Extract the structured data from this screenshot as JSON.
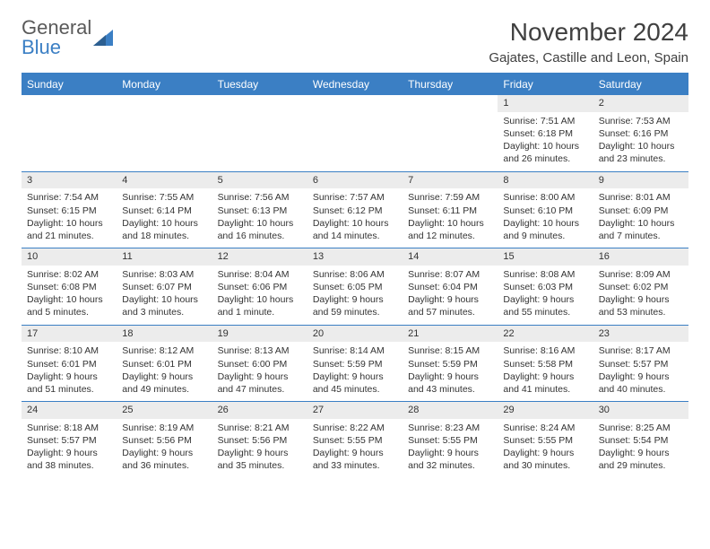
{
  "logo": {
    "top": "General",
    "bottom": "Blue"
  },
  "title": "November 2024",
  "location": "Gajates, Castille and Leon, Spain",
  "colors": {
    "accent": "#3b7fc4",
    "header_row_bg": "#ececec",
    "text": "#333333",
    "logo_gray": "#5a5a5a"
  },
  "weekdays": [
    "Sunday",
    "Monday",
    "Tuesday",
    "Wednesday",
    "Thursday",
    "Friday",
    "Saturday"
  ],
  "weeks": [
    [
      {
        "empty": true
      },
      {
        "empty": true
      },
      {
        "empty": true
      },
      {
        "empty": true
      },
      {
        "empty": true
      },
      {
        "day": "1",
        "sunrise": "Sunrise: 7:51 AM",
        "sunset": "Sunset: 6:18 PM",
        "daylight": "Daylight: 10 hours and 26 minutes."
      },
      {
        "day": "2",
        "sunrise": "Sunrise: 7:53 AM",
        "sunset": "Sunset: 6:16 PM",
        "daylight": "Daylight: 10 hours and 23 minutes."
      }
    ],
    [
      {
        "day": "3",
        "sunrise": "Sunrise: 7:54 AM",
        "sunset": "Sunset: 6:15 PM",
        "daylight": "Daylight: 10 hours and 21 minutes."
      },
      {
        "day": "4",
        "sunrise": "Sunrise: 7:55 AM",
        "sunset": "Sunset: 6:14 PM",
        "daylight": "Daylight: 10 hours and 18 minutes."
      },
      {
        "day": "5",
        "sunrise": "Sunrise: 7:56 AM",
        "sunset": "Sunset: 6:13 PM",
        "daylight": "Daylight: 10 hours and 16 minutes."
      },
      {
        "day": "6",
        "sunrise": "Sunrise: 7:57 AM",
        "sunset": "Sunset: 6:12 PM",
        "daylight": "Daylight: 10 hours and 14 minutes."
      },
      {
        "day": "7",
        "sunrise": "Sunrise: 7:59 AM",
        "sunset": "Sunset: 6:11 PM",
        "daylight": "Daylight: 10 hours and 12 minutes."
      },
      {
        "day": "8",
        "sunrise": "Sunrise: 8:00 AM",
        "sunset": "Sunset: 6:10 PM",
        "daylight": "Daylight: 10 hours and 9 minutes."
      },
      {
        "day": "9",
        "sunrise": "Sunrise: 8:01 AM",
        "sunset": "Sunset: 6:09 PM",
        "daylight": "Daylight: 10 hours and 7 minutes."
      }
    ],
    [
      {
        "day": "10",
        "sunrise": "Sunrise: 8:02 AM",
        "sunset": "Sunset: 6:08 PM",
        "daylight": "Daylight: 10 hours and 5 minutes."
      },
      {
        "day": "11",
        "sunrise": "Sunrise: 8:03 AM",
        "sunset": "Sunset: 6:07 PM",
        "daylight": "Daylight: 10 hours and 3 minutes."
      },
      {
        "day": "12",
        "sunrise": "Sunrise: 8:04 AM",
        "sunset": "Sunset: 6:06 PM",
        "daylight": "Daylight: 10 hours and 1 minute."
      },
      {
        "day": "13",
        "sunrise": "Sunrise: 8:06 AM",
        "sunset": "Sunset: 6:05 PM",
        "daylight": "Daylight: 9 hours and 59 minutes."
      },
      {
        "day": "14",
        "sunrise": "Sunrise: 8:07 AM",
        "sunset": "Sunset: 6:04 PM",
        "daylight": "Daylight: 9 hours and 57 minutes."
      },
      {
        "day": "15",
        "sunrise": "Sunrise: 8:08 AM",
        "sunset": "Sunset: 6:03 PM",
        "daylight": "Daylight: 9 hours and 55 minutes."
      },
      {
        "day": "16",
        "sunrise": "Sunrise: 8:09 AM",
        "sunset": "Sunset: 6:02 PM",
        "daylight": "Daylight: 9 hours and 53 minutes."
      }
    ],
    [
      {
        "day": "17",
        "sunrise": "Sunrise: 8:10 AM",
        "sunset": "Sunset: 6:01 PM",
        "daylight": "Daylight: 9 hours and 51 minutes."
      },
      {
        "day": "18",
        "sunrise": "Sunrise: 8:12 AM",
        "sunset": "Sunset: 6:01 PM",
        "daylight": "Daylight: 9 hours and 49 minutes."
      },
      {
        "day": "19",
        "sunrise": "Sunrise: 8:13 AM",
        "sunset": "Sunset: 6:00 PM",
        "daylight": "Daylight: 9 hours and 47 minutes."
      },
      {
        "day": "20",
        "sunrise": "Sunrise: 8:14 AM",
        "sunset": "Sunset: 5:59 PM",
        "daylight": "Daylight: 9 hours and 45 minutes."
      },
      {
        "day": "21",
        "sunrise": "Sunrise: 8:15 AM",
        "sunset": "Sunset: 5:59 PM",
        "daylight": "Daylight: 9 hours and 43 minutes."
      },
      {
        "day": "22",
        "sunrise": "Sunrise: 8:16 AM",
        "sunset": "Sunset: 5:58 PM",
        "daylight": "Daylight: 9 hours and 41 minutes."
      },
      {
        "day": "23",
        "sunrise": "Sunrise: 8:17 AM",
        "sunset": "Sunset: 5:57 PM",
        "daylight": "Daylight: 9 hours and 40 minutes."
      }
    ],
    [
      {
        "day": "24",
        "sunrise": "Sunrise: 8:18 AM",
        "sunset": "Sunset: 5:57 PM",
        "daylight": "Daylight: 9 hours and 38 minutes."
      },
      {
        "day": "25",
        "sunrise": "Sunrise: 8:19 AM",
        "sunset": "Sunset: 5:56 PM",
        "daylight": "Daylight: 9 hours and 36 minutes."
      },
      {
        "day": "26",
        "sunrise": "Sunrise: 8:21 AM",
        "sunset": "Sunset: 5:56 PM",
        "daylight": "Daylight: 9 hours and 35 minutes."
      },
      {
        "day": "27",
        "sunrise": "Sunrise: 8:22 AM",
        "sunset": "Sunset: 5:55 PM",
        "daylight": "Daylight: 9 hours and 33 minutes."
      },
      {
        "day": "28",
        "sunrise": "Sunrise: 8:23 AM",
        "sunset": "Sunset: 5:55 PM",
        "daylight": "Daylight: 9 hours and 32 minutes."
      },
      {
        "day": "29",
        "sunrise": "Sunrise: 8:24 AM",
        "sunset": "Sunset: 5:55 PM",
        "daylight": "Daylight: 9 hours and 30 minutes."
      },
      {
        "day": "30",
        "sunrise": "Sunrise: 8:25 AM",
        "sunset": "Sunset: 5:54 PM",
        "daylight": "Daylight: 9 hours and 29 minutes."
      }
    ]
  ]
}
